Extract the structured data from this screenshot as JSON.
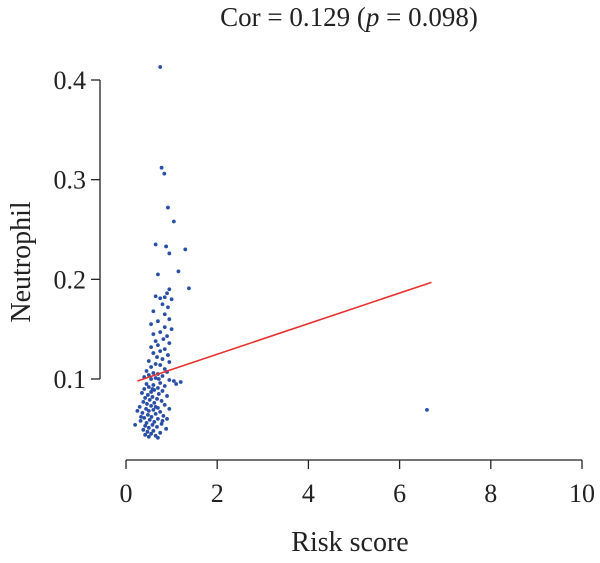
{
  "chart_data": {
    "type": "scatter",
    "title": {
      "prefix": "Cor = 0.129 (",
      "italic": "p",
      "suffix": " = 0.098)"
    },
    "xlabel": "Risk score",
    "ylabel": "Neutrophil",
    "xlim": [
      0,
      10
    ],
    "ylim": [
      0.035,
      0.42
    ],
    "x_ticks": [
      0,
      2,
      4,
      6,
      8,
      10
    ],
    "x_tick_labels": [
      "0",
      "2",
      "4",
      "6",
      "8",
      "10"
    ],
    "y_ticks": [
      0.1,
      0.2,
      0.3,
      0.4
    ],
    "y_tick_labels": [
      "0.1",
      "0.2",
      "0.3",
      "0.4"
    ],
    "grid": false,
    "point_color": "#2a4fa8",
    "line_color": "#e8312f",
    "regression_line": {
      "x": [
        0.25,
        6.7
      ],
      "y": [
        0.098,
        0.197
      ]
    },
    "series": [
      {
        "points": [
          [
            0.75,
            0.413
          ],
          [
            0.78,
            0.312
          ],
          [
            0.84,
            0.306
          ],
          [
            0.92,
            0.272
          ],
          [
            1.05,
            0.258
          ],
          [
            0.65,
            0.235
          ],
          [
            0.88,
            0.233
          ],
          [
            1.3,
            0.23
          ],
          [
            0.95,
            0.226
          ],
          [
            0.7,
            0.205
          ],
          [
            1.15,
            0.208
          ],
          [
            1.38,
            0.191
          ],
          [
            0.95,
            0.19
          ],
          [
            0.9,
            0.186
          ],
          [
            0.65,
            0.183
          ],
          [
            0.85,
            0.182
          ],
          [
            0.75,
            0.181
          ],
          [
            1.0,
            0.18
          ],
          [
            0.8,
            0.175
          ],
          [
            0.92,
            0.172
          ],
          [
            0.6,
            0.168
          ],
          [
            0.85,
            0.165
          ],
          [
            0.95,
            0.16
          ],
          [
            0.7,
            0.158
          ],
          [
            0.55,
            0.155
          ],
          [
            0.85,
            0.152
          ],
          [
            1.0,
            0.15
          ],
          [
            0.75,
            0.147
          ],
          [
            0.6,
            0.145
          ],
          [
            0.9,
            0.143
          ],
          [
            0.82,
            0.14
          ],
          [
            0.65,
            0.138
          ],
          [
            0.95,
            0.136
          ],
          [
            0.7,
            0.134
          ],
          [
            0.55,
            0.132
          ],
          [
            0.85,
            0.13
          ],
          [
            0.75,
            0.128
          ],
          [
            0.6,
            0.126
          ],
          [
            0.92,
            0.124
          ],
          [
            0.68,
            0.122
          ],
          [
            0.8,
            0.12
          ],
          [
            0.5,
            0.118
          ],
          [
            0.95,
            0.117
          ],
          [
            0.65,
            0.115
          ],
          [
            0.75,
            0.114
          ],
          [
            0.55,
            0.112
          ],
          [
            0.85,
            0.11
          ],
          [
            0.45,
            0.108
          ],
          [
            0.9,
            0.107
          ],
          [
            0.6,
            0.106
          ],
          [
            0.7,
            0.105
          ],
          [
            0.5,
            0.104
          ],
          [
            0.8,
            0.103
          ],
          [
            0.4,
            0.102
          ],
          [
            0.65,
            0.101
          ],
          [
            0.55,
            0.1
          ],
          [
            0.95,
            0.099
          ],
          [
            1.05,
            0.098
          ],
          [
            1.2,
            0.097
          ],
          [
            0.75,
            0.096
          ],
          [
            0.45,
            0.095
          ],
          [
            0.6,
            0.094
          ],
          [
            0.85,
            0.093
          ],
          [
            0.5,
            0.092
          ],
          [
            0.7,
            0.091
          ],
          [
            0.4,
            0.09
          ],
          [
            0.62,
            0.089
          ],
          [
            0.8,
            0.088
          ],
          [
            0.55,
            0.087
          ],
          [
            0.35,
            0.086
          ],
          [
            0.72,
            0.085
          ],
          [
            0.48,
            0.084
          ],
          [
            0.9,
            0.083
          ],
          [
            0.58,
            0.082
          ],
          [
            0.42,
            0.081
          ],
          [
            0.68,
            0.08
          ],
          [
            0.52,
            0.079
          ],
          [
            0.78,
            0.078
          ],
          [
            0.38,
            0.077
          ],
          [
            0.62,
            0.076
          ],
          [
            0.46,
            0.075
          ],
          [
            0.85,
            0.074
          ],
          [
            0.55,
            0.073
          ],
          [
            0.3,
            0.072
          ],
          [
            0.7,
            0.071
          ],
          [
            0.44,
            0.07
          ],
          [
            0.6,
            0.069
          ],
          [
            0.5,
            0.068
          ],
          [
            0.75,
            0.067
          ],
          [
            0.36,
            0.066
          ],
          [
            0.65,
            0.065
          ],
          [
            0.48,
            0.064
          ],
          [
            0.82,
            0.063
          ],
          [
            0.56,
            0.062
          ],
          [
            0.4,
            0.061
          ],
          [
            0.7,
            0.06
          ],
          [
            0.52,
            0.059
          ],
          [
            0.32,
            0.058
          ],
          [
            0.62,
            0.057
          ],
          [
            0.45,
            0.056
          ],
          [
            0.78,
            0.055
          ],
          [
            0.58,
            0.054
          ],
          [
            0.42,
            0.053
          ],
          [
            0.68,
            0.052
          ],
          [
            0.5,
            0.051
          ],
          [
            0.88,
            0.05
          ],
          [
            0.38,
            0.049
          ],
          [
            0.6,
            0.048
          ],
          [
            0.47,
            0.047
          ],
          [
            0.75,
            0.046
          ],
          [
            0.55,
            0.045
          ],
          [
            0.42,
            0.044
          ],
          [
            0.65,
            0.043
          ],
          [
            0.5,
            0.042
          ],
          [
            0.7,
            0.041
          ],
          [
            0.25,
            0.068
          ],
          [
            0.2,
            0.054
          ],
          [
            0.33,
            0.062
          ],
          [
            0.95,
            0.07
          ],
          [
            1.1,
            0.095
          ],
          [
            0.9,
            0.06
          ],
          [
            0.8,
            0.058
          ],
          [
            0.65,
            0.072
          ],
          [
            0.58,
            0.09
          ],
          [
            0.72,
            0.1
          ],
          [
            6.6,
            0.069
          ]
        ]
      }
    ]
  }
}
